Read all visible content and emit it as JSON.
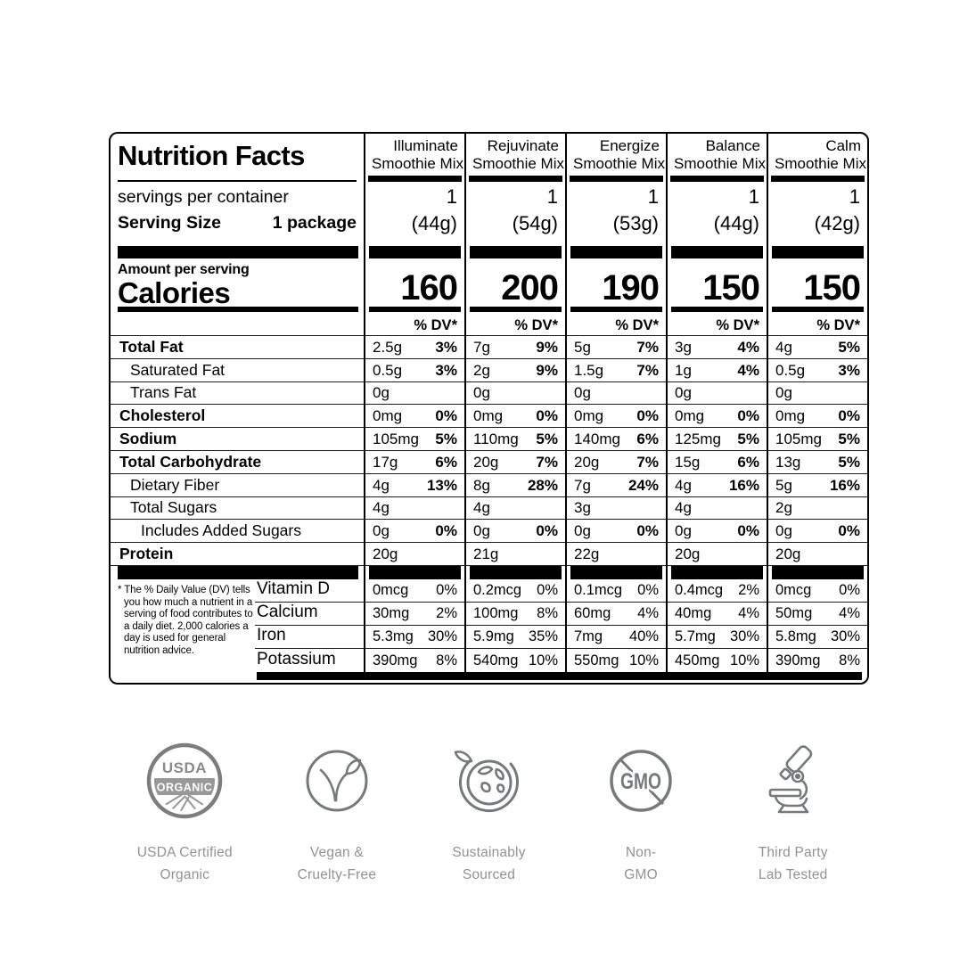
{
  "label": {
    "title": "Nutrition Facts",
    "servings_line": "servings per container",
    "serving_size_label": "Serving Size",
    "serving_size_value": "1 package",
    "amount_per_serving": "Amount per serving",
    "calories_label": "Calories",
    "dv_header": "% DV*",
    "footnote": "* The % Daily Value (DV) tells you how much a nutrient in a serving of food contributes to a daily diet. 2,000 calories a day is used for general nutrition advice."
  },
  "rows": [
    {
      "label": "Total Fat",
      "bold": true,
      "indent": 0
    },
    {
      "label": "Saturated Fat",
      "bold": false,
      "indent": 1
    },
    {
      "label": "Trans Fat",
      "bold": false,
      "indent": 1
    },
    {
      "label": "Cholesterol",
      "bold": true,
      "indent": 0
    },
    {
      "label": "Sodium",
      "bold": true,
      "indent": 0
    },
    {
      "label": "Total Carbohydrate",
      "bold": true,
      "indent": 0
    },
    {
      "label": "Dietary Fiber",
      "bold": false,
      "indent": 1
    },
    {
      "label": "Total Sugars",
      "bold": false,
      "indent": 1
    },
    {
      "label": "Includes Added Sugars",
      "bold": false,
      "indent": 2
    },
    {
      "label": "Protein",
      "bold": true,
      "indent": 0
    }
  ],
  "micro_rows": [
    "Vitamin D",
    "Calcium",
    "Iron",
    "Potassium"
  ],
  "products": [
    {
      "name_line1": "Illuminate",
      "name_line2": "Smoothie Mix",
      "servings": "1",
      "size": "(44g)",
      "calories": "160",
      "values": [
        [
          "2.5g",
          "3%"
        ],
        [
          "0.5g",
          "3%"
        ],
        [
          "0g",
          ""
        ],
        [
          "0mg",
          "0%"
        ],
        [
          "105mg",
          "5%"
        ],
        [
          "17g",
          "6%"
        ],
        [
          "4g",
          "13%"
        ],
        [
          "4g",
          ""
        ],
        [
          "0g",
          "0%"
        ],
        [
          "20g",
          ""
        ]
      ],
      "micros": [
        [
          "0mcg",
          "0%"
        ],
        [
          "30mg",
          "2%"
        ],
        [
          "5.3mg",
          "30%"
        ],
        [
          "390mg",
          "8%"
        ]
      ]
    },
    {
      "name_line1": "Rejuvinate",
      "name_line2": "Smoothie Mix",
      "servings": "1",
      "size": "(54g)",
      "calories": "200",
      "values": [
        [
          "7g",
          "9%"
        ],
        [
          "2g",
          "9%"
        ],
        [
          "0g",
          ""
        ],
        [
          "0mg",
          "0%"
        ],
        [
          "110mg",
          "5%"
        ],
        [
          "20g",
          "7%"
        ],
        [
          "8g",
          "28%"
        ],
        [
          "4g",
          ""
        ],
        [
          "0g",
          "0%"
        ],
        [
          "21g",
          ""
        ]
      ],
      "micros": [
        [
          "0.2mcg",
          "0%"
        ],
        [
          "100mg",
          "8%"
        ],
        [
          "5.9mg",
          "35%"
        ],
        [
          "540mg",
          "10%"
        ]
      ]
    },
    {
      "name_line1": "Energize",
      "name_line2": "Smoothie Mix",
      "servings": "1",
      "size": "(53g)",
      "calories": "190",
      "values": [
        [
          "5g",
          "7%"
        ],
        [
          "1.5g",
          "7%"
        ],
        [
          "0g",
          ""
        ],
        [
          "0mg",
          "0%"
        ],
        [
          "140mg",
          "6%"
        ],
        [
          "20g",
          "7%"
        ],
        [
          "7g",
          "24%"
        ],
        [
          "3g",
          ""
        ],
        [
          "0g",
          "0%"
        ],
        [
          "22g",
          ""
        ]
      ],
      "micros": [
        [
          "0.1mcg",
          "0%"
        ],
        [
          "60mg",
          "4%"
        ],
        [
          "7mg",
          "40%"
        ],
        [
          "550mg",
          "10%"
        ]
      ]
    },
    {
      "name_line1": "Balance",
      "name_line2": "Smoothie Mix",
      "servings": "1",
      "size": "(44g)",
      "calories": "150",
      "values": [
        [
          "3g",
          "4%"
        ],
        [
          "1g",
          "4%"
        ],
        [
          "0g",
          ""
        ],
        [
          "0mg",
          "0%"
        ],
        [
          "125mg",
          "5%"
        ],
        [
          "15g",
          "6%"
        ],
        [
          "4g",
          "16%"
        ],
        [
          "4g",
          ""
        ],
        [
          "0g",
          "0%"
        ],
        [
          "20g",
          ""
        ]
      ],
      "micros": [
        [
          "0.4mcg",
          "2%"
        ],
        [
          "40mg",
          "4%"
        ],
        [
          "5.7mg",
          "30%"
        ],
        [
          "450mg",
          "10%"
        ]
      ]
    },
    {
      "name_line1": "Calm",
      "name_line2": "Smoothie Mix",
      "servings": "1",
      "size": "(42g)",
      "calories": "150",
      "values": [
        [
          "4g",
          "5%"
        ],
        [
          "0.5g",
          "3%"
        ],
        [
          "0g",
          ""
        ],
        [
          "0mg",
          "0%"
        ],
        [
          "105mg",
          "5%"
        ],
        [
          "13g",
          "5%"
        ],
        [
          "5g",
          "16%"
        ],
        [
          "2g",
          ""
        ],
        [
          "0g",
          "0%"
        ],
        [
          "20g",
          ""
        ]
      ],
      "micros": [
        [
          "0mcg",
          "0%"
        ],
        [
          "50mg",
          "4%"
        ],
        [
          "5.8mg",
          "30%"
        ],
        [
          "390mg",
          "8%"
        ]
      ]
    }
  ],
  "badges": [
    {
      "caption_line1": "USDA Certified",
      "caption_line2": "Organic",
      "seal_top": "USDA",
      "seal_band": "ORGANIC"
    },
    {
      "caption_line1": "Vegan &",
      "caption_line2": "Cruelty-Free"
    },
    {
      "caption_line1": "Sustainably",
      "caption_line2": "Sourced"
    },
    {
      "caption_line1": "Non-",
      "caption_line2": "GMO",
      "icon_text": "GMO"
    },
    {
      "caption_line1": "Third Party",
      "caption_line2": "Lab Tested"
    }
  ],
  "colors": {
    "panel_border": "#000000",
    "badge_icon": "#76797c",
    "badge_caption": "#8f9296",
    "seal_fill": "#989898"
  }
}
